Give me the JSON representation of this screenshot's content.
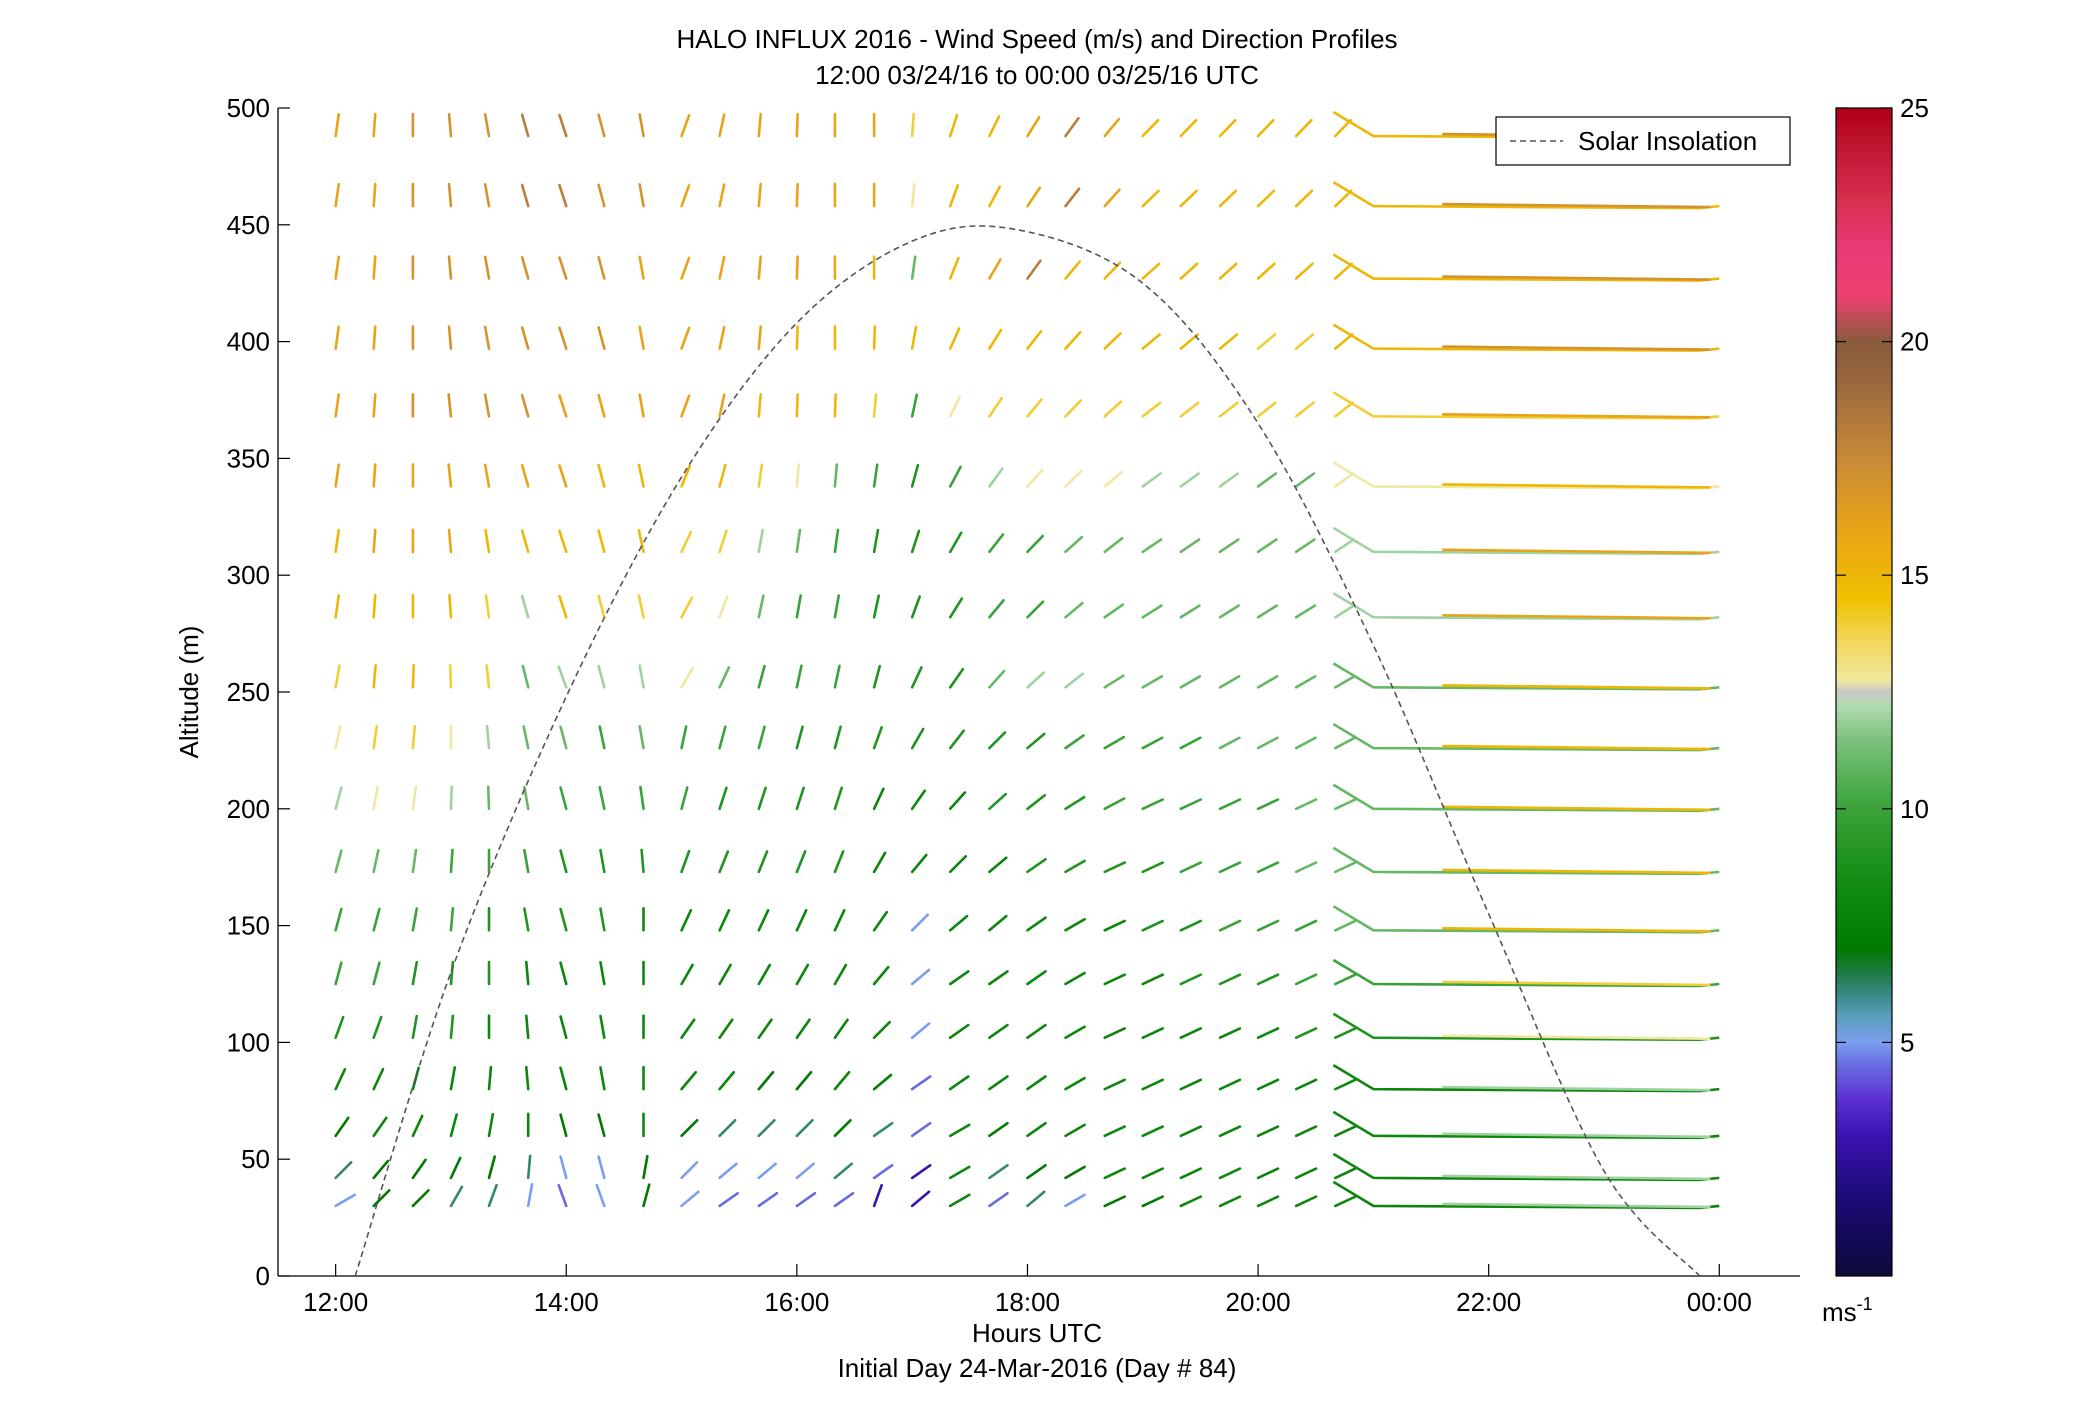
{
  "chart_data": {
    "type": "wind-barb",
    "title": "HALO INFLUX 2016 - Wind Speed (m/s) and Direction Profiles",
    "subtitle": "12:00 03/24/16 to 00:00 03/25/16  UTC",
    "xlabel": "Hours UTC",
    "xlabel_sub": "Initial Day 24-Mar-2016 (Day # 84)",
    "ylabel": "Altitude (m)",
    "xlim": [
      11.5,
      24.7
    ],
    "ylim": [
      0,
      500
    ],
    "x_ticks": [
      12,
      14,
      16,
      18,
      20,
      22,
      24
    ],
    "x_tick_labels": [
      "12:00",
      "14:00",
      "16:00",
      "18:00",
      "20:00",
      "22:00",
      "00:00"
    ],
    "y_ticks": [
      0,
      50,
      100,
      150,
      200,
      250,
      300,
      350,
      400,
      450,
      500
    ],
    "y_tick_labels": [
      "0",
      "50",
      "100",
      "150",
      "200",
      "250",
      "300",
      "350",
      "400",
      "450",
      "500"
    ],
    "colorbar": {
      "range": [
        0,
        25
      ],
      "ticks": [
        5,
        10,
        15,
        20,
        25
      ],
      "tick_labels": [
        "5",
        "10",
        "15",
        "20",
        "25"
      ],
      "unit_base": "ms",
      "unit_exp": "-1"
    },
    "legend": {
      "position": "top-right",
      "entries": [
        "Solar Insolation"
      ]
    },
    "solar_insolation_curve": {
      "x": [
        12.17,
        13.0,
        14.0,
        15.0,
        16.0,
        17.0,
        17.9,
        19.0,
        20.0,
        21.0,
        22.0,
        23.0,
        23.83
      ],
      "y": [
        0,
        130,
        248,
        342,
        408,
        443,
        448,
        425,
        365,
        270,
        155,
        45,
        0
      ]
    },
    "time_columns": [
      12.0,
      12.33,
      12.67,
      13.0,
      13.33,
      13.67,
      14.0,
      14.33,
      14.67,
      15.0,
      15.33,
      15.67,
      16.0,
      16.33,
      16.67,
      17.0,
      17.33,
      17.67,
      18.0,
      18.33,
      18.67,
      19.0,
      19.33,
      19.67,
      20.0,
      20.33,
      20.67
    ],
    "altitude_levels": [
      30,
      42,
      60,
      80,
      102,
      125,
      148,
      173,
      200,
      226,
      252,
      282,
      310,
      338,
      368,
      397,
      427,
      458,
      488
    ],
    "wind_speed_ms": [
      [
        5,
        7,
        7,
        6,
        6,
        5,
        4,
        5,
        7,
        5,
        4,
        4,
        4,
        4,
        3,
        3,
        8,
        4,
        6,
        5,
        7,
        7,
        8,
        8,
        8,
        8,
        8
      ],
      [
        6,
        7,
        7,
        7,
        7,
        6,
        5,
        5,
        7,
        5,
        5,
        5,
        5,
        6,
        4,
        3,
        8,
        6,
        7,
        7,
        8,
        8,
        8,
        8,
        8,
        8,
        8
      ],
      [
        7,
        8,
        8,
        8,
        8,
        8,
        7,
        7,
        8,
        7,
        6,
        6,
        6,
        7,
        6,
        4,
        8,
        7,
        8,
        8,
        8,
        8,
        8,
        8,
        8,
        8,
        8
      ],
      [
        8,
        8,
        8,
        8,
        8,
        8,
        8,
        8,
        8,
        8,
        8,
        7,
        7,
        8,
        7,
        4,
        8,
        8,
        8,
        8,
        8,
        8,
        8,
        8,
        8,
        8,
        8
      ],
      [
        9,
        9,
        9,
        9,
        8,
        8,
        8,
        8,
        8,
        8,
        8,
        8,
        8,
        8,
        8,
        5,
        8,
        8,
        8,
        8,
        8,
        8,
        8,
        8,
        8,
        9,
        9
      ],
      [
        10,
        10,
        9,
        9,
        9,
        8,
        8,
        8,
        8,
        8,
        8,
        8,
        8,
        8,
        8,
        5,
        8,
        8,
        8,
        8,
        8,
        8,
        9,
        9,
        9,
        10,
        10
      ],
      [
        10,
        10,
        10,
        10,
        9,
        9,
        9,
        9,
        8,
        8,
        8,
        8,
        8,
        8,
        8,
        5,
        8,
        8,
        8,
        8,
        8,
        9,
        9,
        10,
        10,
        10,
        11
      ],
      [
        11,
        11,
        11,
        10,
        10,
        10,
        9,
        9,
        9,
        9,
        9,
        9,
        9,
        9,
        8,
        8,
        8,
        8,
        9,
        9,
        9,
        9,
        10,
        10,
        10,
        11,
        11
      ],
      [
        12,
        13,
        13,
        12,
        11,
        11,
        10,
        10,
        10,
        10,
        9,
        9,
        9,
        9,
        8,
        8,
        8,
        9,
        9,
        9,
        10,
        10,
        10,
        10,
        10,
        11,
        11
      ],
      [
        13,
        14,
        14,
        13,
        12,
        11,
        11,
        10,
        11,
        10,
        10,
        10,
        9,
        9,
        9,
        9,
        9,
        9,
        9,
        10,
        10,
        10,
        10,
        11,
        11,
        11,
        11
      ],
      [
        14,
        15,
        15,
        14,
        14,
        11,
        12,
        12,
        12,
        13,
        11,
        10,
        10,
        10,
        9,
        9,
        9,
        11,
        12,
        12,
        11,
        11,
        11,
        11,
        11,
        11,
        11
      ],
      [
        15,
        15,
        15,
        15,
        14,
        12,
        15,
        14,
        14,
        14,
        13,
        11,
        10,
        10,
        9,
        9,
        9,
        10,
        10,
        11,
        11,
        11,
        11,
        11,
        11,
        11,
        12
      ],
      [
        15,
        16,
        16,
        16,
        15,
        15,
        15,
        15,
        15,
        14,
        14,
        12,
        11,
        10,
        9,
        9,
        9,
        10,
        10,
        11,
        11,
        11,
        11,
        11,
        11,
        11,
        12
      ],
      [
        16,
        16,
        16,
        16,
        16,
        16,
        16,
        15,
        15,
        15,
        15,
        14,
        13,
        11,
        10,
        9,
        10,
        12,
        13,
        13,
        13,
        12,
        12,
        12,
        11,
        11,
        13
      ],
      [
        16,
        16,
        17,
        17,
        17,
        17,
        16,
        16,
        16,
        16,
        16,
        15,
        15,
        15,
        14,
        10,
        13,
        14,
        14,
        14,
        14,
        14,
        14,
        14,
        14,
        14,
        14
      ],
      [
        16,
        16,
        17,
        17,
        17,
        17,
        17,
        17,
        16,
        16,
        16,
        16,
        15,
        15,
        15,
        15,
        15,
        15,
        15,
        15,
        15,
        15,
        15,
        15,
        14,
        14,
        15
      ],
      [
        16,
        16,
        17,
        17,
        17,
        17,
        17,
        17,
        16,
        16,
        16,
        16,
        16,
        16,
        15,
        11,
        15,
        16,
        18,
        15,
        15,
        15,
        15,
        15,
        15,
        15,
        15
      ],
      [
        16,
        16,
        17,
        17,
        17,
        18,
        18,
        17,
        17,
        16,
        16,
        16,
        16,
        16,
        16,
        13,
        15,
        15,
        16,
        18,
        16,
        15,
        15,
        15,
        15,
        15,
        15
      ],
      [
        16,
        16,
        17,
        17,
        17,
        18,
        18,
        17,
        17,
        16,
        16,
        16,
        16,
        16,
        16,
        14,
        15,
        15,
        16,
        18,
        16,
        15,
        15,
        15,
        15,
        15,
        15
      ]
    ],
    "tail_direction_deg_ccw_from_east": [
      [
        210,
        225,
        225,
        240,
        250,
        260,
        290,
        290,
        255,
        220,
        215,
        215,
        215,
        215,
        250,
        220,
        210,
        215,
        220,
        210,
        205,
        205,
        205,
        205,
        205,
        205,
        205
      ],
      [
        225,
        230,
        235,
        245,
        255,
        265,
        285,
        285,
        260,
        225,
        220,
        220,
        220,
        220,
        215,
        215,
        210,
        215,
        215,
        210,
        205,
        205,
        205,
        205,
        205,
        205,
        205
      ],
      [
        235,
        235,
        245,
        255,
        260,
        270,
        285,
        285,
        270,
        225,
        225,
        225,
        225,
        225,
        215,
        215,
        210,
        215,
        215,
        210,
        205,
        205,
        205,
        205,
        205,
        205,
        205
      ],
      [
        245,
        245,
        255,
        260,
        265,
        275,
        285,
        280,
        270,
        230,
        230,
        230,
        230,
        230,
        220,
        215,
        215,
        215,
        215,
        210,
        205,
        205,
        205,
        205,
        205,
        205,
        205
      ],
      [
        250,
        250,
        260,
        265,
        270,
        275,
        285,
        280,
        270,
        235,
        235,
        235,
        235,
        235,
        225,
        220,
        215,
        215,
        215,
        210,
        205,
        205,
        205,
        205,
        205,
        205,
        205
      ],
      [
        255,
        255,
        260,
        265,
        270,
        275,
        285,
        280,
        270,
        240,
        240,
        240,
        240,
        240,
        230,
        220,
        215,
        215,
        215,
        210,
        205,
        205,
        205,
        205,
        205,
        205,
        205
      ],
      [
        255,
        255,
        260,
        265,
        270,
        280,
        285,
        280,
        270,
        245,
        245,
        245,
        245,
        245,
        235,
        225,
        220,
        220,
        215,
        210,
        205,
        205,
        205,
        205,
        205,
        205,
        205
      ],
      [
        255,
        258,
        262,
        266,
        270,
        280,
        285,
        280,
        275,
        250,
        248,
        248,
        248,
        248,
        240,
        230,
        225,
        220,
        215,
        210,
        205,
        205,
        205,
        205,
        205,
        205,
        205
      ],
      [
        255,
        260,
        262,
        268,
        272,
        280,
        285,
        282,
        278,
        255,
        252,
        252,
        252,
        252,
        245,
        235,
        228,
        222,
        218,
        212,
        208,
        205,
        205,
        205,
        205,
        205,
        205
      ],
      [
        258,
        262,
        265,
        270,
        275,
        282,
        285,
        282,
        280,
        258,
        255,
        255,
        255,
        255,
        250,
        240,
        232,
        225,
        220,
        215,
        210,
        208,
        208,
        208,
        208,
        208,
        208
      ],
      [
        260,
        265,
        268,
        272,
        276,
        284,
        290,
        285,
        280,
        240,
        245,
        255,
        258,
        258,
        255,
        245,
        235,
        228,
        222,
        218,
        212,
        210,
        210,
        210,
        210,
        210,
        210
      ],
      [
        262,
        266,
        270,
        274,
        278,
        286,
        288,
        285,
        282,
        242,
        250,
        258,
        260,
        260,
        258,
        250,
        238,
        230,
        225,
        220,
        215,
        212,
        212,
        212,
        212,
        212,
        212
      ],
      [
        262,
        266,
        270,
        275,
        279,
        286,
        288,
        285,
        282,
        245,
        252,
        260,
        262,
        262,
        260,
        252,
        240,
        232,
        226,
        222,
        218,
        214,
        214,
        214,
        214,
        214,
        214
      ],
      [
        262,
        266,
        270,
        276,
        280,
        286,
        288,
        285,
        282,
        248,
        255,
        262,
        265,
        265,
        262,
        255,
        242,
        234,
        228,
        224,
        220,
        216,
        216,
        216,
        216,
        216,
        216
      ],
      [
        262,
        266,
        270,
        276,
        280,
        286,
        288,
        285,
        280,
        250,
        258,
        265,
        268,
        268,
        265,
        258,
        244,
        236,
        230,
        226,
        222,
        218,
        218,
        218,
        218,
        218,
        218
      ],
      [
        262,
        266,
        270,
        275,
        280,
        286,
        288,
        285,
        280,
        250,
        258,
        265,
        268,
        270,
        268,
        260,
        246,
        238,
        232,
        228,
        224,
        220,
        220,
        220,
        220,
        220,
        220
      ],
      [
        262,
        266,
        270,
        275,
        280,
        286,
        288,
        285,
        280,
        250,
        258,
        265,
        268,
        270,
        270,
        262,
        248,
        240,
        234,
        230,
        226,
        222,
        222,
        222,
        222,
        222,
        222
      ],
      [
        262,
        266,
        270,
        275,
        280,
        286,
        288,
        285,
        280,
        250,
        258,
        265,
        268,
        270,
        270,
        264,
        250,
        242,
        236,
        232,
        228,
        224,
        224,
        224,
        224,
        224,
        224
      ],
      [
        262,
        266,
        270,
        275,
        280,
        286,
        288,
        285,
        280,
        250,
        258,
        265,
        268,
        270,
        270,
        266,
        252,
        244,
        238,
        234,
        230,
        226,
        226,
        226,
        226,
        226,
        226
      ]
    ],
    "late_columns_tail_direction_note": "nearly horizontal, pointing left (approximately 180 deg)",
    "late_column_time": 21.0
  },
  "colors": {
    "solar_curve": "#555555",
    "axes": "#000000",
    "background": "#ffffff"
  }
}
